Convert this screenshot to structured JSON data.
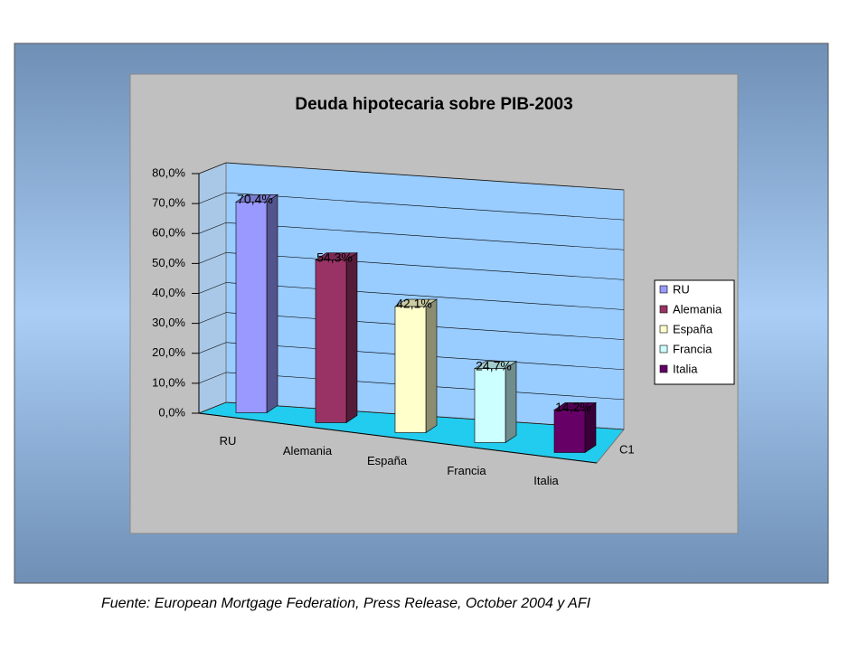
{
  "chart_data": {
    "type": "bar3d",
    "title": "Deuda hipotecaria sobre PIB-2003",
    "categories": [
      "RU",
      "Alemania",
      "España",
      "Francia",
      "Italia"
    ],
    "values": [
      70.4,
      54.3,
      42.1,
      24.7,
      14.2
    ],
    "value_labels": [
      "70,4%",
      "54,3%",
      "42,1%",
      "24,7%",
      "14,2%"
    ],
    "colors": [
      "#9999ff",
      "#993366",
      "#ffffcc",
      "#ccffff",
      "#660066"
    ],
    "depth_label": "C1",
    "ylim": [
      0,
      80
    ],
    "yticks": [
      {
        "value": 0,
        "label": "0,0%"
      },
      {
        "value": 10,
        "label": "10,0%"
      },
      {
        "value": 20,
        "label": "20,0%"
      },
      {
        "value": 30,
        "label": "30,0%"
      },
      {
        "value": 40,
        "label": "40,0%"
      },
      {
        "value": 50,
        "label": "50,0%"
      },
      {
        "value": 60,
        "label": "60,0%"
      },
      {
        "value": 70,
        "label": "70,0%"
      },
      {
        "value": 80,
        "label": "80,0%"
      }
    ],
    "grid": true,
    "legend": "right"
  },
  "footer": {
    "source": "Fuente: European Mortgage Federation, Press Release, October 2004 y AFI"
  }
}
